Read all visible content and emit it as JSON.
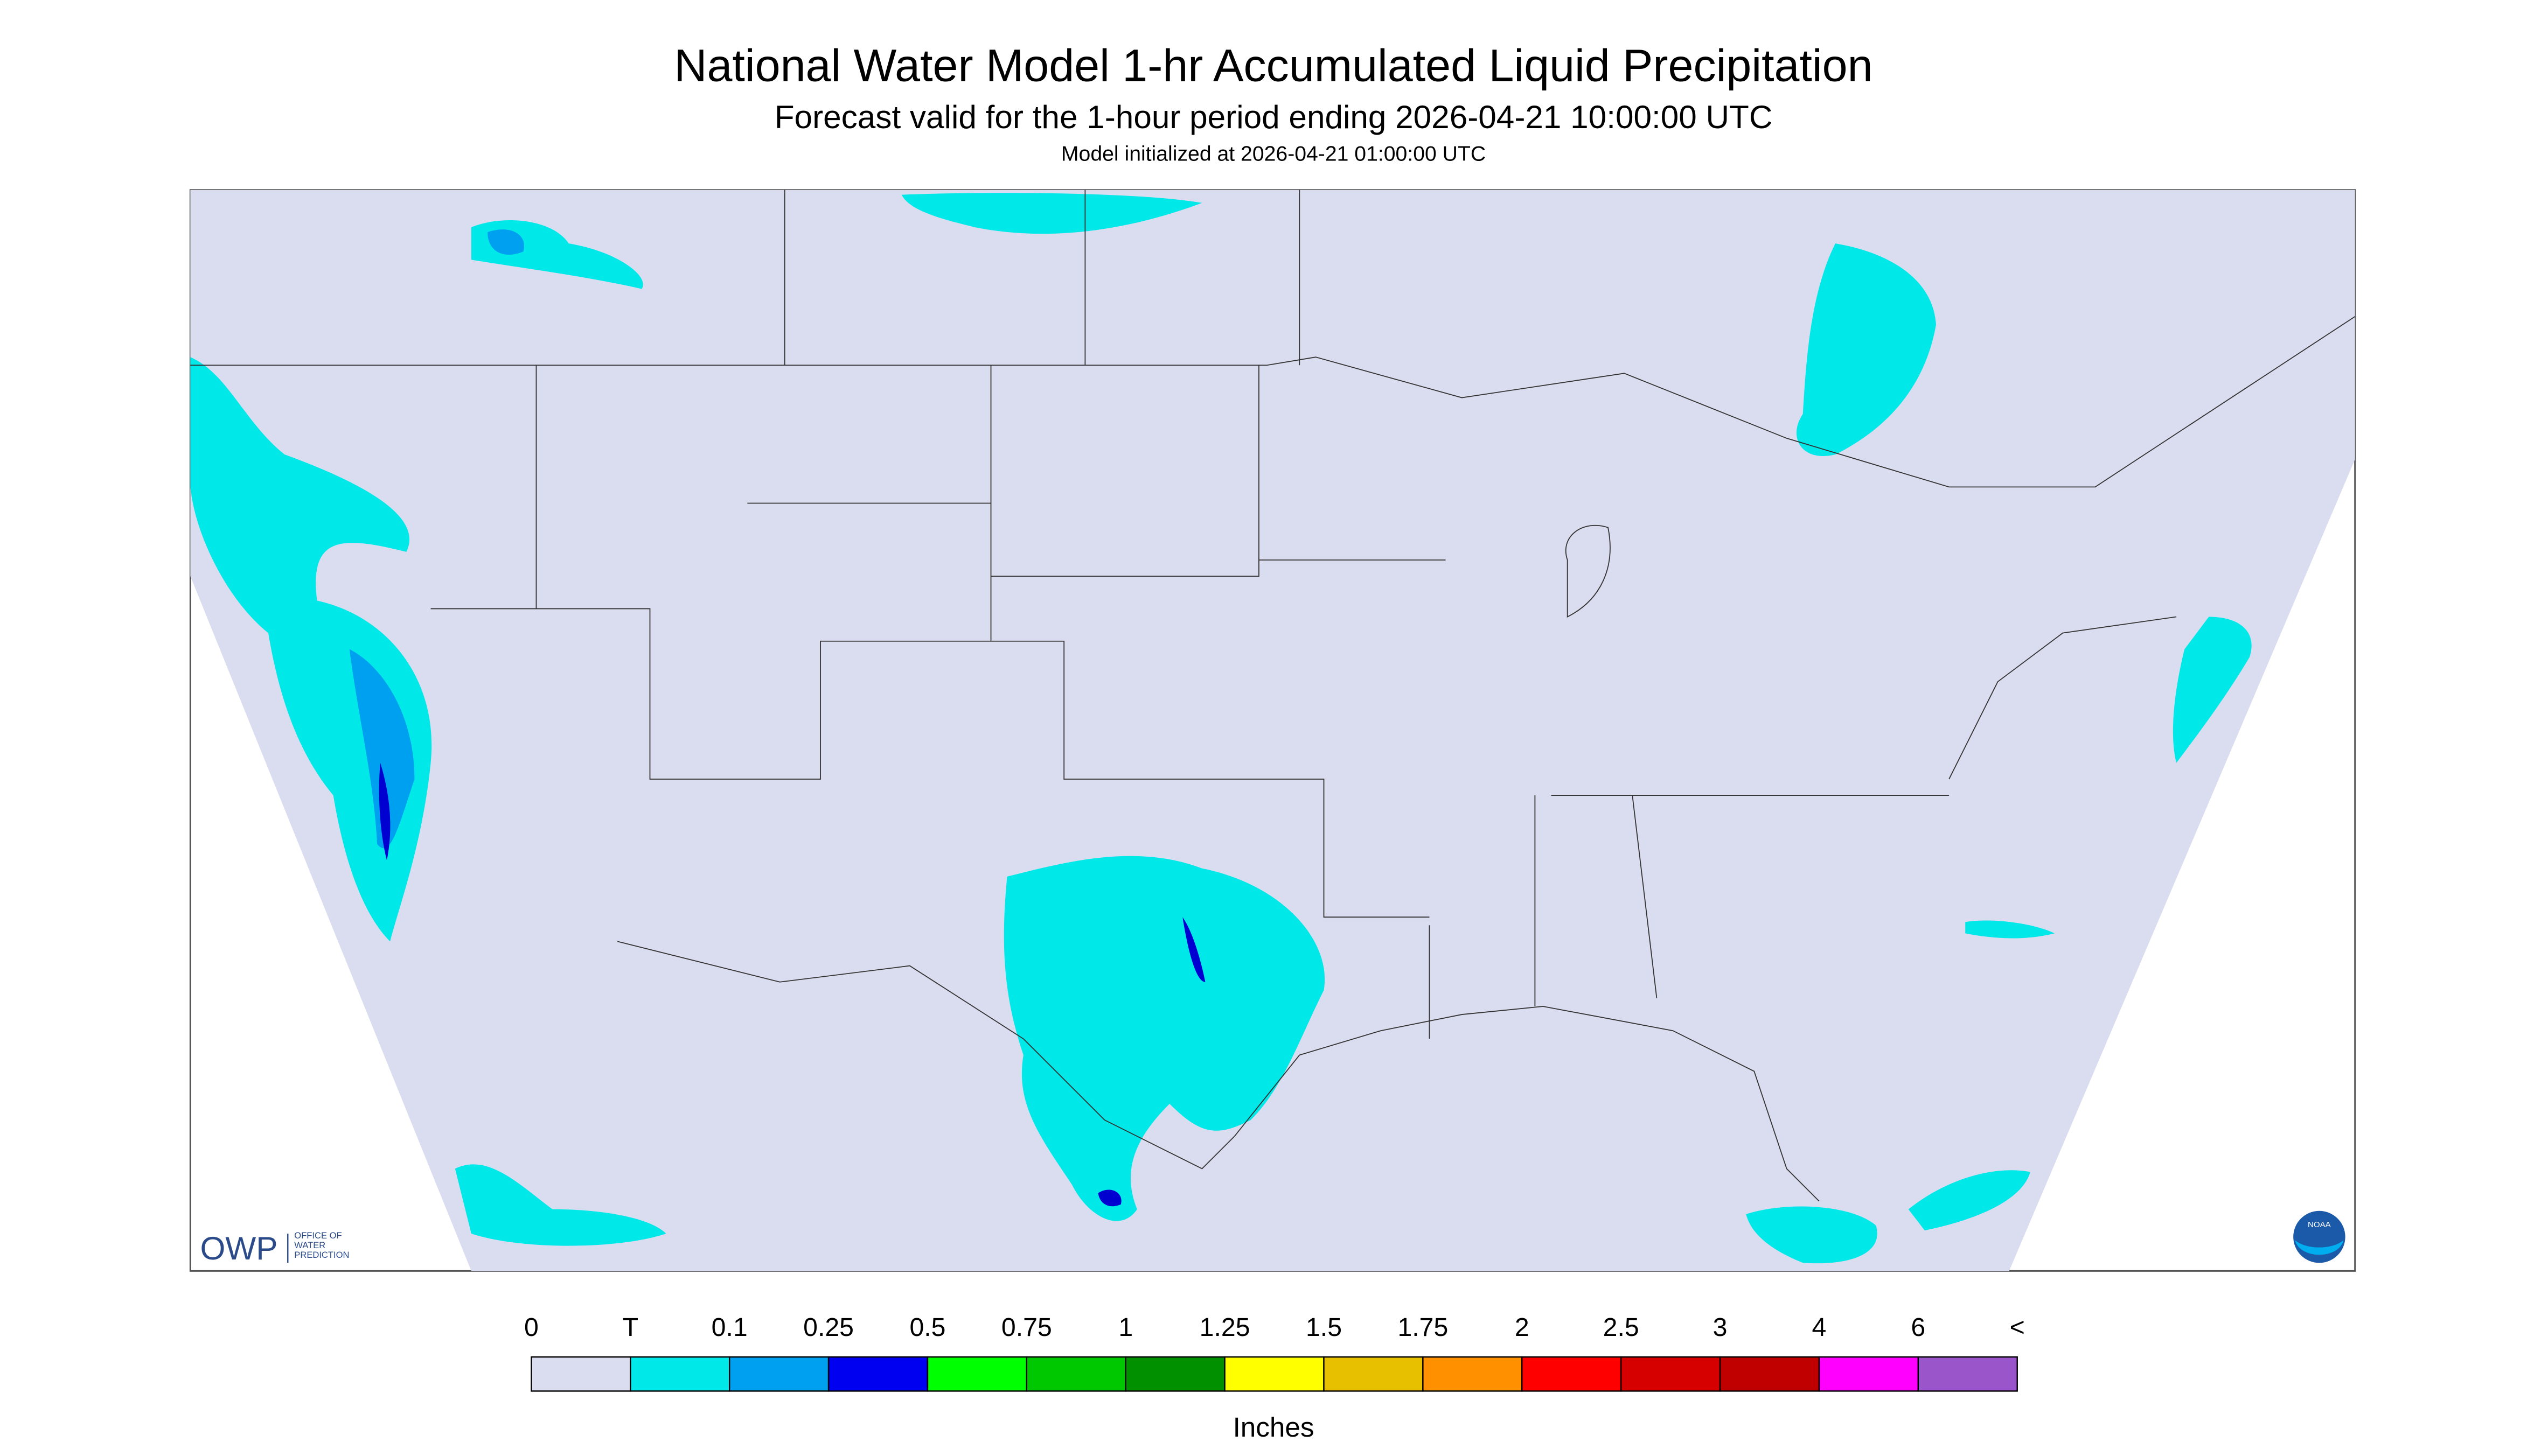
{
  "header": {
    "title": "National Water Model 1-hr Accumulated Liquid Precipitation",
    "subtitle": "Forecast valid for the 1-hour period ending 2026-04-21 10:00:00 UTC",
    "init": "Model initialized at 2026-04-21 01:00:00 UTC"
  },
  "logo": {
    "owp": "OWP",
    "office": [
      "OFFICE OF",
      "WATER",
      "PREDICTION"
    ],
    "noaa": "NOAA"
  },
  "legend": {
    "labels": [
      "0",
      "T",
      "0.1",
      "0.25",
      "0.5",
      "0.75",
      "1",
      "1.25",
      "1.5",
      "1.75",
      "2",
      "2.5",
      "3",
      "4",
      "6",
      "<"
    ],
    "colors": [
      "#dadcef",
      "#00e8e8",
      "#00a0f0",
      "#0000f0",
      "#00ff00",
      "#00c800",
      "#009000",
      "#ffff00",
      "#e7c000",
      "#ff9000",
      "#ff0000",
      "#d60000",
      "#c00000",
      "#ff00ff",
      "#9955c9"
    ],
    "units": "Inches"
  }
}
